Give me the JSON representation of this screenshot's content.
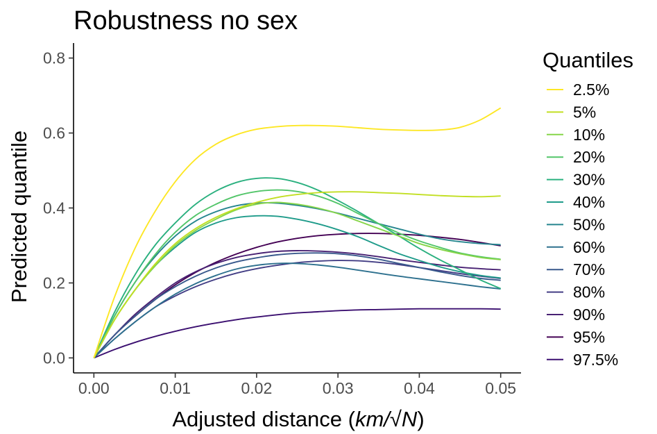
{
  "chart_data": {
    "type": "line",
    "title": "Robustness no sex",
    "xlabel": "Adjusted distance  (",
    "xlabel_math": "km/√N",
    "xlabel_close": ")",
    "ylabel": "Predicted quantile",
    "xlim": [
      -0.0025,
      0.0525
    ],
    "ylim": [
      -0.04,
      0.84
    ],
    "xticks": [
      0.0,
      0.01,
      0.02,
      0.03,
      0.04,
      0.05
    ],
    "xtick_labels": [
      "0.00",
      "0.01",
      "0.02",
      "0.03",
      "0.04",
      "0.05"
    ],
    "yticks": [
      0.0,
      0.2,
      0.4,
      0.6,
      0.8
    ],
    "ytick_labels": [
      "0.0",
      "0.2",
      "0.4",
      "0.6",
      "0.8"
    ],
    "grid": false,
    "legend_title": "Quantiles",
    "legend_position": "right",
    "x": [
      0.0,
      0.0025,
      0.005,
      0.0075,
      0.01,
      0.0125,
      0.015,
      0.0175,
      0.02,
      0.0225,
      0.025,
      0.0275,
      0.03,
      0.0325,
      0.035,
      0.0375,
      0.04,
      0.0425,
      0.045,
      0.0475,
      0.05
    ],
    "series": [
      {
        "name": "2.5%",
        "color": "#FDE725",
        "values": [
          0.0,
          0.16,
          0.29,
          0.39,
          0.47,
          0.53,
          0.57,
          0.595,
          0.61,
          0.617,
          0.62,
          0.62,
          0.618,
          0.614,
          0.61,
          0.608,
          0.607,
          0.608,
          0.615,
          0.635,
          0.667
        ]
      },
      {
        "name": "5%",
        "color": "#C2DF23",
        "values": [
          0.0,
          0.1,
          0.18,
          0.25,
          0.305,
          0.345,
          0.375,
          0.398,
          0.415,
          0.428,
          0.436,
          0.441,
          0.443,
          0.443,
          0.441,
          0.439,
          0.436,
          0.433,
          0.431,
          0.43,
          0.432
        ]
      },
      {
        "name": "10%",
        "color": "#86D549",
        "values": [
          0.0,
          0.1,
          0.18,
          0.245,
          0.3,
          0.34,
          0.37,
          0.395,
          0.41,
          0.415,
          0.41,
          0.4,
          0.385,
          0.365,
          0.345,
          0.325,
          0.305,
          0.29,
          0.278,
          0.268,
          0.262
        ]
      },
      {
        "name": "20%",
        "color": "#52C569",
        "values": [
          0.0,
          0.11,
          0.2,
          0.275,
          0.335,
          0.38,
          0.41,
          0.432,
          0.444,
          0.448,
          0.444,
          0.432,
          0.412,
          0.385,
          0.358,
          0.333,
          0.312,
          0.295,
          0.28,
          0.27,
          0.263
        ]
      },
      {
        "name": "30%",
        "color": "#2AB07F",
        "values": [
          0.0,
          0.12,
          0.22,
          0.3,
          0.36,
          0.41,
          0.445,
          0.468,
          0.479,
          0.479,
          0.468,
          0.448,
          0.42,
          0.39,
          0.358,
          0.325,
          0.292,
          0.262,
          0.235,
          0.208,
          0.185
        ]
      },
      {
        "name": "40%",
        "color": "#1E9B8A",
        "values": [
          0.0,
          0.1,
          0.18,
          0.245,
          0.295,
          0.335,
          0.36,
          0.374,
          0.379,
          0.378,
          0.37,
          0.358,
          0.342,
          0.323,
          0.3,
          0.278,
          0.26,
          0.243,
          0.23,
          0.22,
          0.213
        ]
      },
      {
        "name": "50%",
        "color": "#25858E",
        "values": [
          0.0,
          0.11,
          0.2,
          0.27,
          0.325,
          0.365,
          0.39,
          0.406,
          0.413,
          0.413,
          0.407,
          0.398,
          0.386,
          0.372,
          0.358,
          0.344,
          0.33,
          0.318,
          0.31,
          0.305,
          0.302
        ]
      },
      {
        "name": "60%",
        "color": "#2D708E",
        "values": [
          0.0,
          0.05,
          0.095,
          0.135,
          0.17,
          0.198,
          0.22,
          0.237,
          0.247,
          0.252,
          0.252,
          0.248,
          0.242,
          0.234,
          0.226,
          0.218,
          0.211,
          0.204,
          0.197,
          0.19,
          0.184
        ]
      },
      {
        "name": "70%",
        "color": "#38598C",
        "values": [
          0.0,
          0.06,
          0.11,
          0.155,
          0.19,
          0.218,
          0.24,
          0.256,
          0.267,
          0.275,
          0.279,
          0.28,
          0.278,
          0.272,
          0.263,
          0.252,
          0.241,
          0.23,
          0.22,
          0.212,
          0.207
        ]
      },
      {
        "name": "80%",
        "color": "#433E85",
        "values": [
          0.0,
          0.05,
          0.095,
          0.135,
          0.165,
          0.19,
          0.21,
          0.226,
          0.238,
          0.247,
          0.254,
          0.258,
          0.26,
          0.259,
          0.255,
          0.249,
          0.241,
          0.233,
          0.225,
          0.218,
          0.212
        ]
      },
      {
        "name": "90%",
        "color": "#482173",
        "values": [
          0.0,
          0.06,
          0.115,
          0.16,
          0.2,
          0.23,
          0.252,
          0.268,
          0.278,
          0.284,
          0.286,
          0.285,
          0.282,
          0.277,
          0.27,
          0.262,
          0.255,
          0.248,
          0.242,
          0.238,
          0.235
        ]
      },
      {
        "name": "95%",
        "color": "#440154",
        "values": [
          0.0,
          0.06,
          0.11,
          0.155,
          0.195,
          0.228,
          0.255,
          0.277,
          0.295,
          0.309,
          0.319,
          0.326,
          0.33,
          0.332,
          0.332,
          0.33,
          0.327,
          0.322,
          0.316,
          0.308,
          0.299
        ]
      },
      {
        "name": "97.5%",
        "color": "#3B0F70",
        "values": [
          0.0,
          0.022,
          0.041,
          0.057,
          0.071,
          0.083,
          0.093,
          0.102,
          0.109,
          0.115,
          0.12,
          0.123,
          0.126,
          0.128,
          0.129,
          0.13,
          0.131,
          0.131,
          0.131,
          0.131,
          0.13
        ]
      }
    ]
  }
}
